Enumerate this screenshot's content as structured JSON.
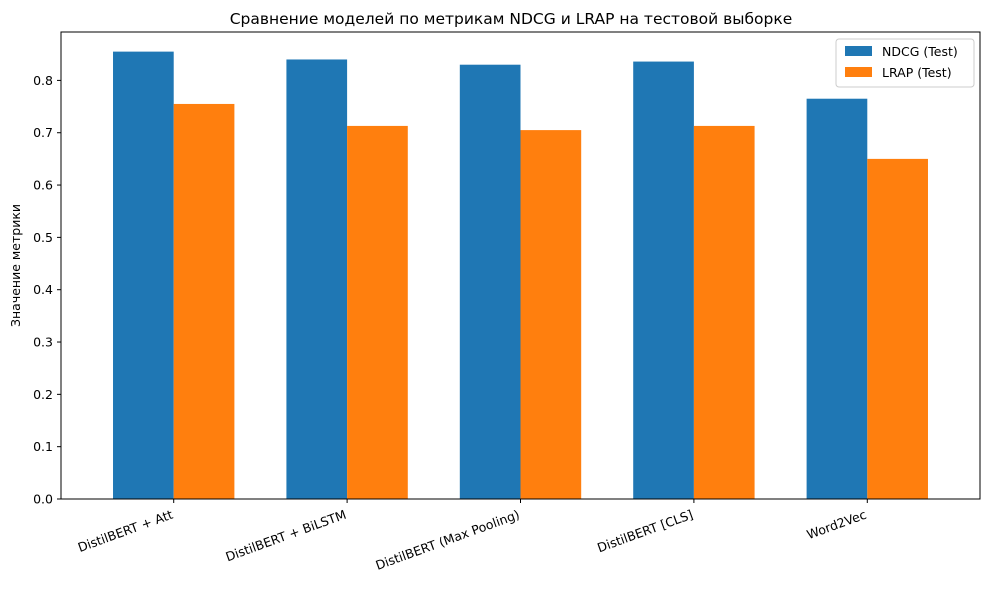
{
  "chart_data": {
    "type": "bar",
    "title": "Сравнение моделей по метрикам NDCG и LRAP на тестовой выборке",
    "xlabel": "",
    "ylabel": "Значение метрики",
    "categories": [
      "DistilBERT + Att",
      "DistilBERT + BiLSTM",
      "DistilBERT (Max Pooling)",
      "DistilBERT [CLS]",
      "Word2Vec"
    ],
    "series": [
      {
        "name": "NDCG (Test)",
        "color": "#1f77b4",
        "values": [
          0.855,
          0.84,
          0.83,
          0.836,
          0.765
        ]
      },
      {
        "name": "LRAP (Test)",
        "color": "#ff7f0e",
        "values": [
          0.755,
          0.713,
          0.705,
          0.713,
          0.65
        ]
      }
    ],
    "ylim": [
      0,
      0.8925
    ],
    "yticks": [
      0.0,
      0.1,
      0.2,
      0.3,
      0.4,
      0.5,
      0.6,
      0.7,
      0.8
    ],
    "ytick_labels": [
      "0.0",
      "0.1",
      "0.2",
      "0.3",
      "0.4",
      "0.5",
      "0.6",
      "0.7",
      "0.8"
    ],
    "legend_position": "top-right",
    "grid": false
  }
}
